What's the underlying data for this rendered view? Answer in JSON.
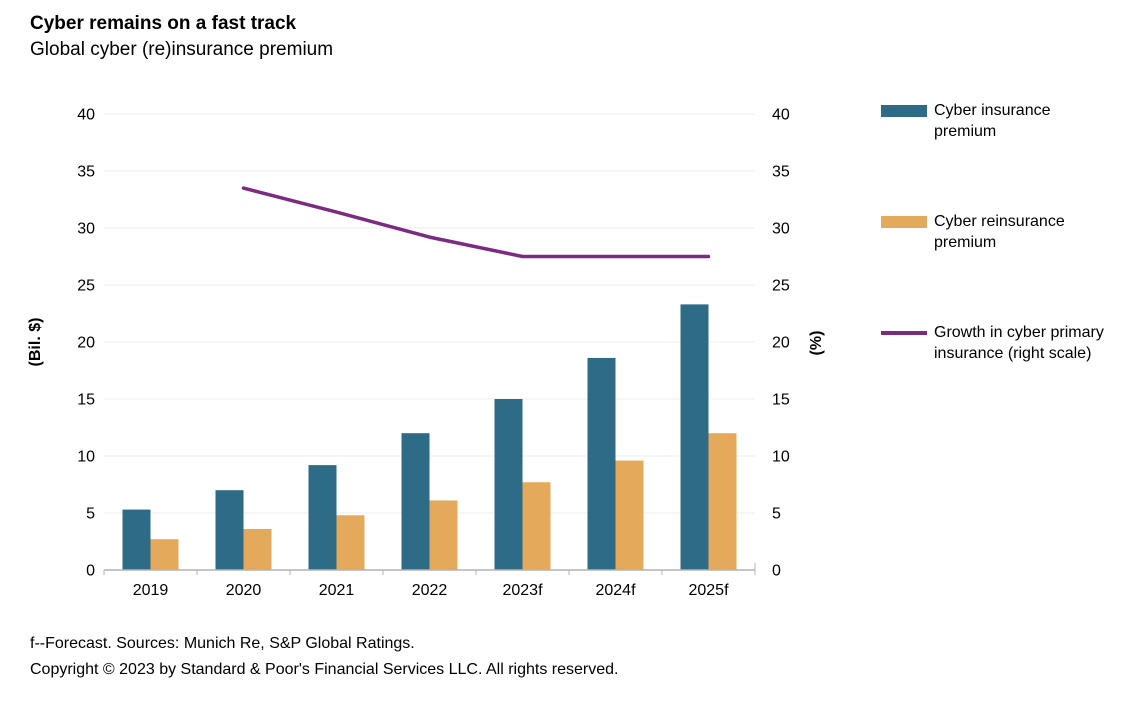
{
  "header": {
    "title": "Cyber remains on a fast track",
    "subtitle": "Global cyber (re)insurance premium"
  },
  "chart_data": {
    "type": "bar",
    "categories": [
      "2019",
      "2020",
      "2021",
      "2022",
      "2023f",
      "2024f",
      "2025f"
    ],
    "series": [
      {
        "name": "Cyber insurance premium",
        "type": "bar",
        "axis": "left",
        "color": "#2e6b86",
        "values": [
          5.3,
          7.0,
          9.2,
          12.0,
          15.0,
          18.6,
          23.3
        ]
      },
      {
        "name": "Cyber reinsurance premium",
        "type": "bar",
        "axis": "left",
        "color": "#e5a95c",
        "values": [
          2.7,
          3.6,
          4.8,
          6.1,
          7.7,
          9.6,
          12.0
        ]
      },
      {
        "name": "Growth in cyber primary insurance (right scale)",
        "type": "line",
        "axis": "right",
        "color": "#7b2b82",
        "values": [
          null,
          33.5,
          31.4,
          29.2,
          27.5,
          27.5,
          27.5
        ]
      }
    ],
    "left_axis": {
      "label": "(Bil. $)",
      "min": 0,
      "max": 40,
      "step": 5
    },
    "right_axis": {
      "label": "(%)",
      "min": 0,
      "max": 40,
      "step": 5
    },
    "grid": true,
    "legend_position": "right"
  },
  "legend": {
    "items": [
      {
        "label": "Cyber insurance\npremium",
        "swatch": "bar",
        "color": "#2e6b86"
      },
      {
        "label": "Cyber reinsurance\npremium",
        "swatch": "bar",
        "color": "#e5a95c"
      },
      {
        "label": "Growth in cyber primary\ninsurance (right scale)",
        "swatch": "line",
        "color": "#7b2b82"
      }
    ]
  },
  "footer": {
    "line1": "f--Forecast. Sources: Munich Re, S&P Global Ratings.",
    "line2": "Copyright © 2023 by Standard & Poor's Financial Services LLC. All rights reserved."
  },
  "colors": {
    "gridline": "#ececec",
    "axis": "#b3b3b3",
    "text": "#000000",
    "background": "#ffffff"
  }
}
